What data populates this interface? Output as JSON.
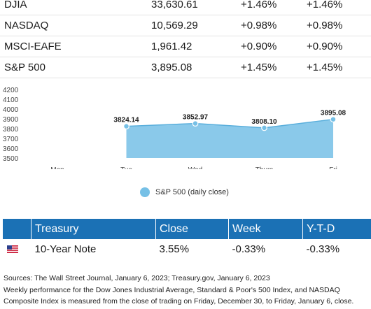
{
  "indices": [
    {
      "name": "DJIA",
      "value": "33,630.61",
      "week": "+1.46%",
      "ytd": "+1.46%"
    },
    {
      "name": "NASDAQ",
      "value": "10,569.29",
      "week": "+0.98%",
      "ytd": "+0.98%"
    },
    {
      "name": "MSCI-EAFE",
      "value": "1,961.42",
      "week": "+0.90%",
      "ytd": "+0.90%"
    },
    {
      "name": "S&P 500",
      "value": "3,895.08",
      "week": "+1.45%",
      "ytd": "+1.45%"
    }
  ],
  "chart_data": {
    "type": "area",
    "categories": [
      "Mon",
      "Tue",
      "Wed",
      "Thurs",
      "Fri"
    ],
    "series": [
      {
        "name": "S&P 500 (daily close)",
        "values": [
          null,
          3824.14,
          3852.97,
          3808.1,
          3895.08
        ]
      }
    ],
    "data_labels": [
      "",
      "3824.14",
      "3852.97",
      "3808.10",
      "3895.08"
    ],
    "y_ticks": [
      "3500",
      "3600",
      "3700",
      "3800",
      "3900",
      "4000",
      "4100",
      "4200"
    ],
    "ylim": [
      3500,
      4200
    ],
    "legend_position": "bottom",
    "color": "#76c0e6",
    "grid": false
  },
  "treasury": {
    "headers": [
      "Treasury",
      "Close",
      "Week",
      "Y-T-D"
    ],
    "row": {
      "name": "10-Year Note",
      "close": "3.55%",
      "week": "-0.33%",
      "ytd": "-0.33%"
    },
    "flag_icon": "us-flag-icon"
  },
  "notes": {
    "sources": "Sources: The Wall Street Journal, January 6, 2023; Treasury.gov, January 6, 2023",
    "methodology": "Weekly performance for the Dow Jones Industrial Average, Standard & Poor's 500 Index, and NASDAQ Composite Index is measured from the close of trading on Friday, December 30, to Friday, January 6, close."
  }
}
